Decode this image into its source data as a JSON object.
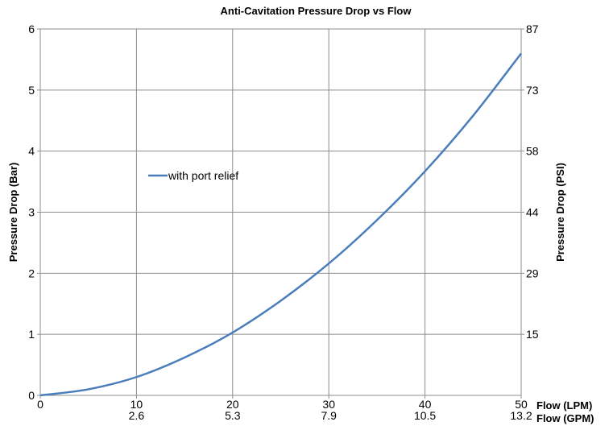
{
  "chart_data": {
    "type": "line",
    "title": "Anti-Cavitation Pressure Drop vs Flow",
    "xlabel_primary": "Flow (LPM)",
    "xlabel_secondary": "Flow (GPM)",
    "ylabel_left": "Pressure Drop (Bar)",
    "ylabel_right": "Pressure Drop (PSI)",
    "xlim": [
      0,
      50
    ],
    "ylim": [
      0,
      6
    ],
    "x_ticks": [
      {
        "value": 0,
        "lpm": "0",
        "gpm": ""
      },
      {
        "value": 10,
        "lpm": "10",
        "gpm": "2.6"
      },
      {
        "value": 20,
        "lpm": "20",
        "gpm": "5.3"
      },
      {
        "value": 30,
        "lpm": "30",
        "gpm": "7.9"
      },
      {
        "value": 40,
        "lpm": "40",
        "gpm": "10.5"
      },
      {
        "value": 50,
        "lpm": "50",
        "gpm": "13.2"
      }
    ],
    "y_ticks_left": [
      "0",
      "1",
      "2",
      "3",
      "4",
      "5",
      "6"
    ],
    "y_ticks_right": [
      {
        "value": 1,
        "label": "15"
      },
      {
        "value": 2,
        "label": "29"
      },
      {
        "value": 3,
        "label": "44"
      },
      {
        "value": 4,
        "label": "58"
      },
      {
        "value": 5,
        "label": "73"
      },
      {
        "value": 6,
        "label": "87"
      }
    ],
    "grid": true,
    "legend_position": "upper-left inside plot",
    "series": [
      {
        "name": "with port relief",
        "color": "#4a7ebb",
        "x": [
          0,
          5,
          10,
          15,
          20,
          25,
          30,
          35,
          40,
          45,
          50
        ],
        "y": [
          0,
          0.1,
          0.3,
          0.62,
          1.03,
          1.55,
          2.16,
          2.87,
          3.67,
          4.58,
          5.6
        ]
      }
    ]
  }
}
